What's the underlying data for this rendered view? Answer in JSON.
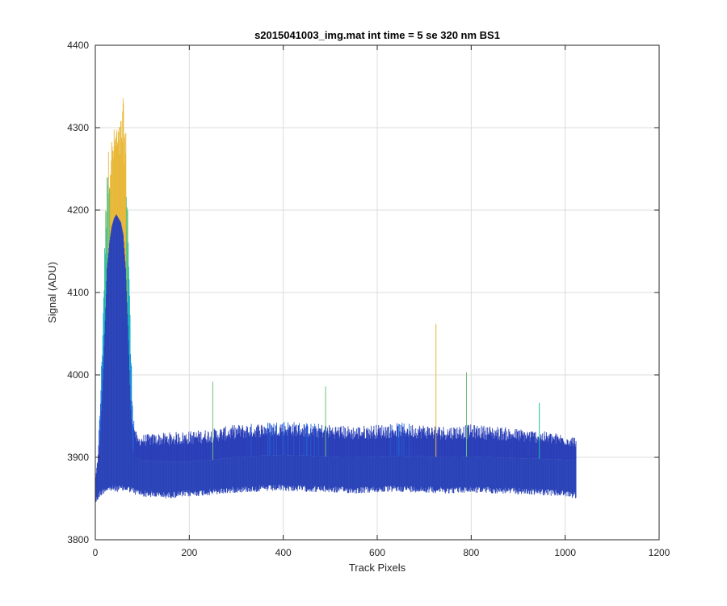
{
  "chart_data": {
    "type": "line",
    "title": "s2015041003_img.mat int time = 5 se  320 nm BS1",
    "xlabel": "Track Pixels",
    "ylabel": "Signal (ADU)",
    "xlim": [
      0,
      1200
    ],
    "ylim": [
      3800,
      4400
    ],
    "xticks": [
      0,
      200,
      400,
      600,
      800,
      1000,
      1200
    ],
    "yticks": [
      3800,
      3900,
      4000,
      4100,
      4200,
      4300,
      4400
    ],
    "grid": true,
    "colormap": [
      "#2a3fb8",
      "#1f66e0",
      "#1a8fd8",
      "#16aecb",
      "#19bba8",
      "#6cc17a",
      "#e8b83a"
    ],
    "series": [
      {
        "band": "max",
        "x": [
          0,
          5,
          10,
          15,
          20,
          25,
          30,
          35,
          40,
          45,
          50,
          55,
          60,
          65,
          70,
          75,
          80,
          85,
          90,
          100,
          150,
          200,
          250,
          300,
          350,
          400,
          450,
          500,
          550,
          600,
          650,
          700,
          750,
          800,
          850,
          900,
          950,
          1000,
          1023
        ],
        "values": [
          3870,
          3900,
          3960,
          4050,
          4160,
          4280,
          4270,
          4290,
          4300,
          4310,
          4300,
          4320,
          4340,
          4300,
          4200,
          4050,
          3960,
          3935,
          3925,
          3928,
          3930,
          3932,
          3935,
          3940,
          3942,
          3945,
          3942,
          3940,
          3938,
          3940,
          3942,
          3940,
          3938,
          3940,
          3938,
          3935,
          3932,
          3928,
          3925
        ]
      },
      {
        "band": "median",
        "x": [
          0,
          5,
          10,
          15,
          20,
          25,
          30,
          35,
          40,
          45,
          50,
          55,
          60,
          65,
          70,
          75,
          80,
          85,
          90,
          100,
          150,
          200,
          250,
          300,
          350,
          400,
          450,
          500,
          550,
          600,
          650,
          700,
          750,
          800,
          850,
          900,
          950,
          1000,
          1023
        ],
        "values": [
          3870,
          3880,
          3920,
          3980,
          4050,
          4130,
          4160,
          4180,
          4190,
          4195,
          4190,
          4185,
          4170,
          4130,
          4060,
          3970,
          3910,
          3900,
          3898,
          3896,
          3895,
          3895,
          3897,
          3900,
          3902,
          3903,
          3902,
          3901,
          3900,
          3901,
          3902,
          3901,
          3900,
          3901,
          3900,
          3899,
          3898,
          3897,
          3896
        ]
      },
      {
        "band": "min",
        "x": [
          0,
          5,
          10,
          15,
          20,
          25,
          30,
          35,
          40,
          45,
          50,
          55,
          60,
          65,
          70,
          75,
          80,
          85,
          90,
          100,
          150,
          200,
          250,
          300,
          350,
          400,
          450,
          500,
          550,
          600,
          650,
          700,
          750,
          800,
          850,
          900,
          950,
          1000,
          1023
        ],
        "values": [
          3850,
          3855,
          3860,
          3862,
          3865,
          3866,
          3866,
          3866,
          3866,
          3866,
          3866,
          3866,
          3866,
          3866,
          3866,
          3865,
          3864,
          3862,
          3862,
          3860,
          3858,
          3860,
          3862,
          3865,
          3866,
          3867,
          3866,
          3865,
          3864,
          3865,
          3866,
          3865,
          3864,
          3865,
          3864,
          3863,
          3862,
          3860,
          3858
        ]
      },
      {
        "band": "spikes",
        "x": [
          250,
          490,
          725,
          790,
          945
        ],
        "values": [
          3992,
          3986,
          4062,
          4003,
          3966
        ]
      }
    ]
  }
}
